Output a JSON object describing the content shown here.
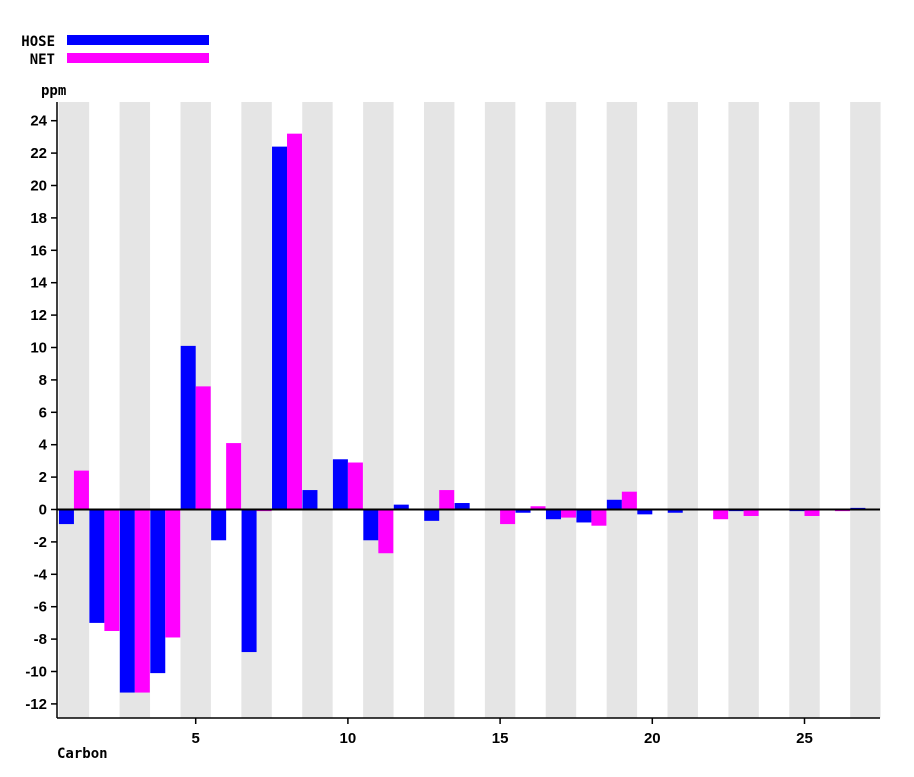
{
  "chart_data": {
    "type": "bar",
    "xlabel": "Carbon",
    "ylabel": "ppm",
    "ylim": [
      -13,
      25.5
    ],
    "yticks": [
      24,
      22,
      20,
      18,
      16,
      14,
      12,
      10,
      8,
      6,
      4,
      2,
      0,
      -2,
      -4,
      -6,
      -8,
      -10,
      -12
    ],
    "xticks": [
      5,
      10,
      15,
      20,
      25
    ],
    "categories": [
      1,
      2,
      3,
      4,
      5,
      6,
      7,
      8,
      9,
      10,
      11,
      12,
      13,
      14,
      15,
      16,
      17,
      18,
      19,
      20,
      21,
      22,
      23,
      24,
      25,
      26,
      27
    ],
    "series": [
      {
        "name": "HOSE",
        "color": "#0000ff",
        "values": [
          -0.9,
          -7.0,
          -11.3,
          -10.1,
          10.1,
          -1.9,
          -8.8,
          22.4,
          1.2,
          3.1,
          -1.9,
          0.3,
          -0.7,
          0.4,
          0,
          -0.2,
          -0.6,
          -0.8,
          0.6,
          -0.3,
          -0.2,
          0,
          -0.1,
          0,
          -0.1,
          0,
          0.1
        ]
      },
      {
        "name": "NET",
        "color": "#ff00ff",
        "values": [
          2.4,
          -7.5,
          -11.3,
          -7.9,
          7.6,
          4.1,
          -0.1,
          23.2,
          0,
          2.9,
          -2.7,
          0,
          1.2,
          0,
          -0.9,
          0.2,
          -0.5,
          -1.0,
          1.1,
          0,
          0,
          -0.6,
          -0.4,
          0,
          -0.4,
          -0.1,
          0
        ]
      }
    ],
    "grid": "alternating-vertical-bands",
    "legend": "top-left"
  }
}
